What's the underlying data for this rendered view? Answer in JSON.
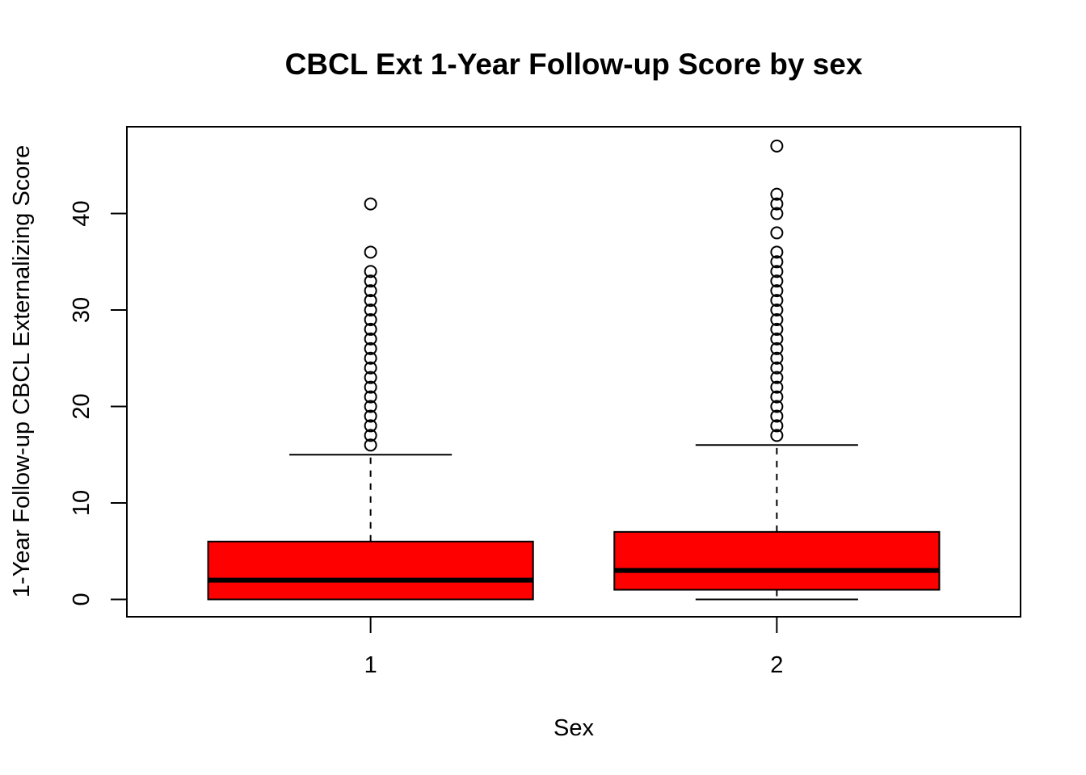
{
  "chart_data": {
    "type": "box",
    "title": "CBCL Ext 1-Year Follow-up Score by sex",
    "xlabel": "Sex",
    "ylabel": "1-Year Follow-up CBCL Externalizing Score",
    "categories": [
      "1",
      "2"
    ],
    "ylim": [
      -1.8,
      49
    ],
    "yticks": [
      0,
      10,
      20,
      30,
      40
    ],
    "grid": false,
    "box_color": "#ff0000",
    "boxes": [
      {
        "category": "1",
        "whisker_low": 0,
        "q1": 0,
        "median": 2,
        "q3": 6,
        "whisker_high": 15,
        "outliers": [
          16,
          17,
          18,
          19,
          20,
          21,
          22,
          23,
          24,
          25,
          26,
          27,
          28,
          29,
          30,
          31,
          32,
          33,
          34,
          36,
          41
        ]
      },
      {
        "category": "2",
        "whisker_low": 0,
        "q1": 1,
        "median": 3,
        "q3": 7,
        "whisker_high": 16,
        "outliers": [
          17,
          18,
          19,
          20,
          21,
          22,
          23,
          24,
          25,
          26,
          27,
          28,
          29,
          30,
          31,
          32,
          33,
          34,
          35,
          36,
          38,
          40,
          41,
          42,
          47
        ]
      }
    ]
  }
}
